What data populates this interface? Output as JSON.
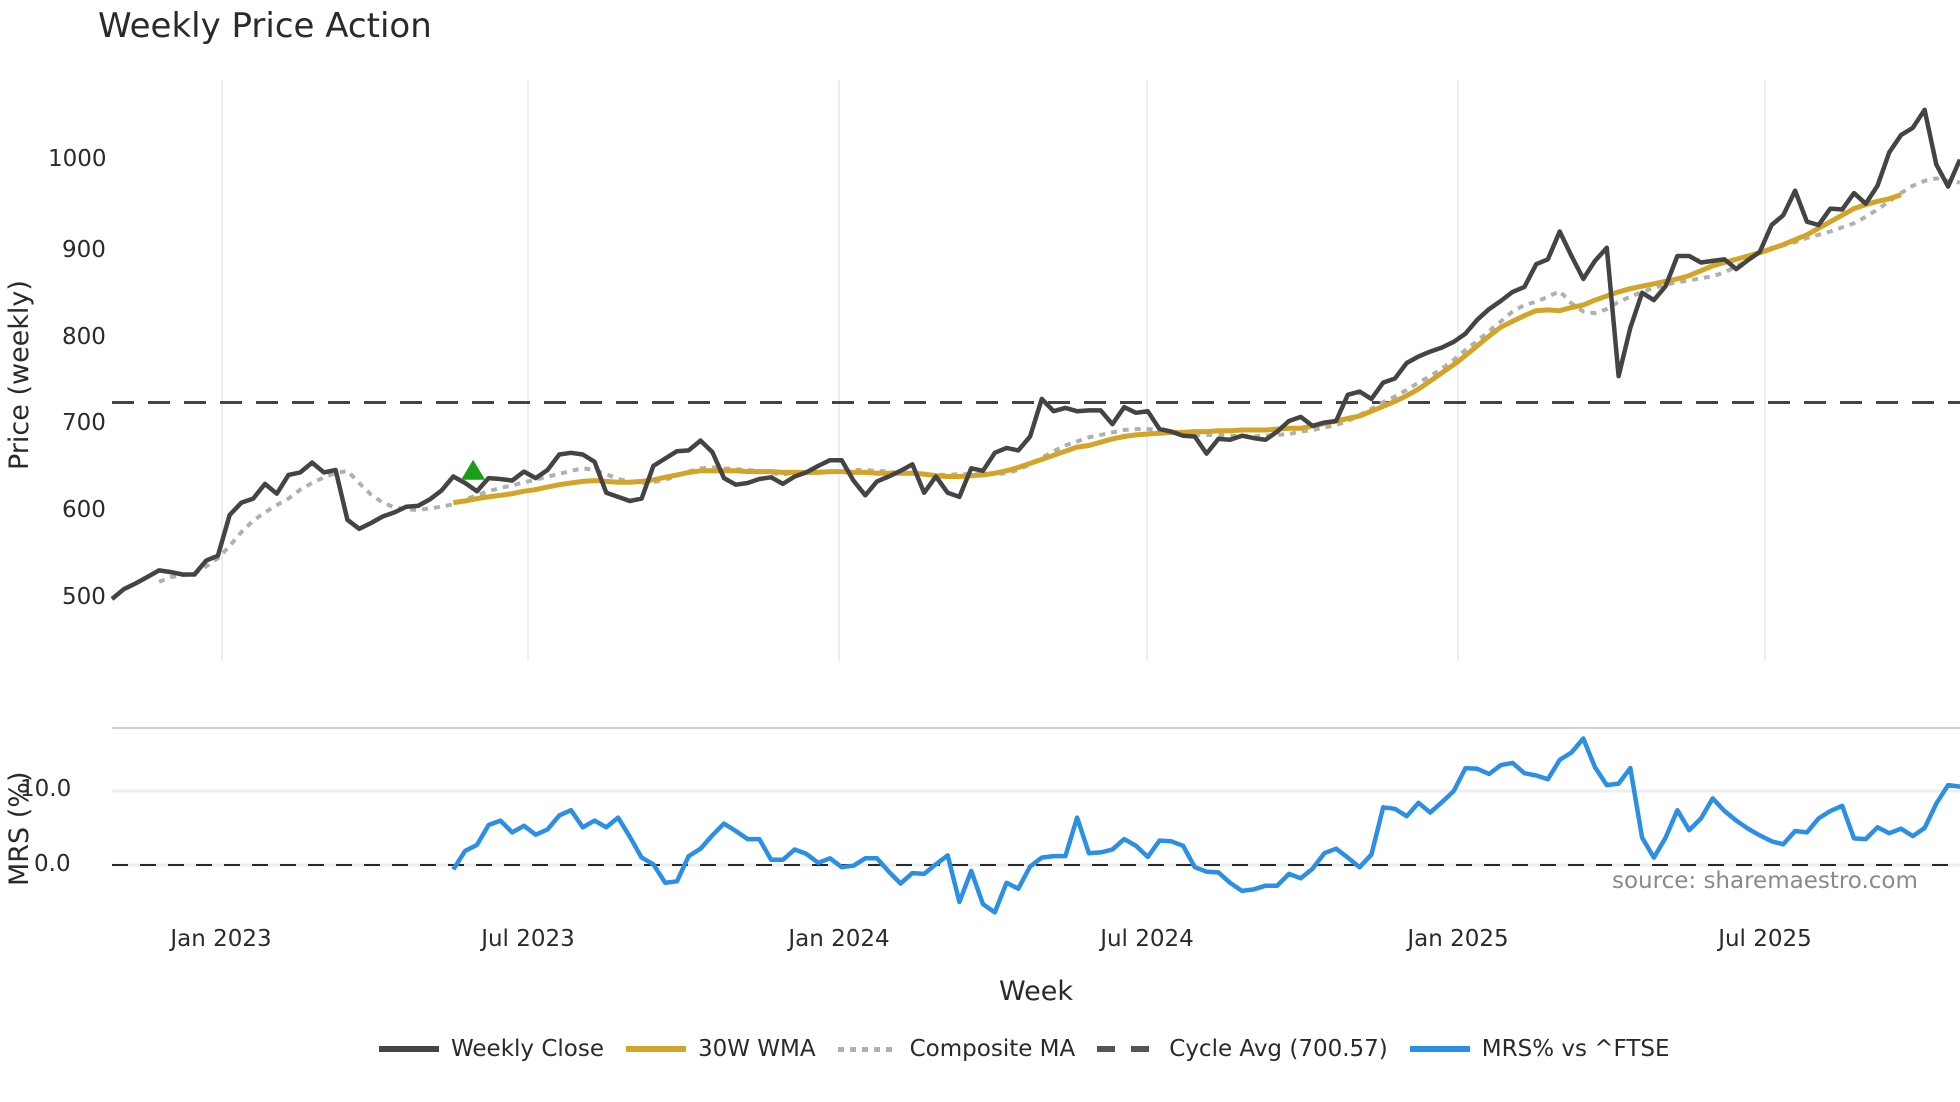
{
  "chart_data": {
    "type": "line",
    "title": "Weekly Price Action",
    "panels": [
      {
        "name": "price",
        "ylabel": "Price (weekly)",
        "yticks": [
          500,
          600,
          700,
          800,
          900,
          1000
        ],
        "ylim": [
          430,
          1080
        ],
        "grid": "vertical"
      },
      {
        "name": "mrs",
        "ylabel": "MRS (%)",
        "yticks": [
          "0.0",
          "10.0"
        ],
        "ytick_values": [
          0,
          10
        ],
        "ylim": [
          -8,
          19
        ],
        "grid": "horizontal"
      }
    ],
    "xlabel": "Week",
    "xticks": [
      "Jan 2023",
      "Jul 2023",
      "Jan 2024",
      "Jul 2024",
      "Jan 2025",
      "Jul 2025"
    ],
    "x_start_week_offset": -9.3,
    "xtick_week_index": [
      9.3,
      35.3,
      61.7,
      87.9,
      114.3,
      140.4
    ],
    "cycle_avg": 700.57,
    "signal_marker": {
      "type": "buy-triangle",
      "week_index": 30,
      "value": 617,
      "color": "#1a9e1a"
    },
    "series": [
      {
        "name": "Weekly Close",
        "color": "#444444",
        "style": "solid",
        "start_index": 0,
        "values": [
          460,
          472,
          479,
          487,
          495,
          493,
          490,
          490,
          507,
          513,
          563,
          578,
          583,
          601,
          589,
          612,
          615,
          627,
          615,
          618,
          557,
          546,
          553,
          561,
          566,
          573,
          574,
          582,
          593,
          610,
          602,
          592,
          608,
          607,
          605,
          616,
          608,
          618,
          637,
          639,
          637,
          628,
          590,
          585,
          580,
          583,
          623,
          632,
          641,
          642,
          654,
          640,
          608,
          600,
          602,
          607,
          609,
          601,
          610,
          615,
          623,
          630,
          630,
          605,
          587,
          604,
          610,
          617,
          625,
          590,
          610,
          590,
          585,
          620,
          617,
          639,
          645,
          642,
          659,
          705,
          690,
          694,
          690,
          691,
          691,
          674,
          695,
          688,
          690,
          668,
          665,
          660,
          659,
          638,
          656,
          655,
          660,
          657,
          655,
          665,
          678,
          683,
          672,
          676,
          678,
          710,
          714,
          705,
          725,
          730,
          749,
          757,
          763,
          768,
          775,
          785,
          802,
          815,
          825,
          836,
          842,
          870,
          876,
          910,
          880,
          852,
          874,
          890,
          733,
          792,
          835,
          826,
          843,
          880,
          880,
          872,
          874,
          876,
          864,
          875,
          885,
          918,
          930,
          960,
          922,
          918,
          938,
          937,
          957,
          944,
          966,
          1007,
          1028,
          1037,
          1059,
          992,
          965,
          998
        ]
      },
      {
        "name": "30W WMA",
        "color": "#d4a428",
        "style": "solid",
        "start_index": 29,
        "values": [
          578,
          580,
          583,
          585,
          587,
          589,
          592,
          594,
          597,
          600,
          602,
          604,
          605,
          604,
          603,
          603,
          604,
          606,
          609,
          612,
          615,
          617,
          617,
          617,
          617,
          616,
          616,
          616,
          615,
          615,
          615,
          615,
          616,
          616,
          615,
          615,
          614,
          614,
          614,
          614,
          613,
          611,
          610,
          610,
          611,
          612,
          614,
          617,
          621,
          626,
          631,
          636,
          641,
          646,
          648,
          652,
          656,
          659,
          661,
          662,
          663,
          664,
          664,
          665,
          665,
          666,
          666,
          667,
          667,
          667,
          668,
          669,
          669,
          672,
          675,
          678,
          681,
          684,
          690,
          696,
          702,
          709,
          717,
          727,
          737,
          747,
          758,
          770,
          782,
          793,
          800,
          807,
          813,
          814,
          813,
          817,
          820,
          826,
          831,
          836,
          840,
          843,
          846,
          849,
          852,
          856,
          862,
          868,
          872,
          876,
          880,
          884,
          889,
          894,
          900,
          906,
          914,
          922,
          930,
          938,
          943,
          947,
          950,
          955
        ]
      },
      {
        "name": "Composite MA",
        "color": "#b0b0b0",
        "style": "dotted",
        "start_index": 4,
        "values": [
          481,
          487,
          489,
          491,
          500,
          510,
          525,
          542,
          556,
          566,
          575,
          583,
          594,
          602,
          609,
          614,
          617,
          602,
          588,
          578,
          572,
          570,
          569,
          571,
          573,
          576,
          582,
          587,
          592,
          596,
          599,
          603,
          606,
          610,
          613,
          617,
          620,
          618,
          613,
          607,
          604,
          602,
          603,
          606,
          611,
          616,
          620,
          621,
          620,
          619,
          618,
          617,
          614,
          613,
          614,
          615,
          616,
          616,
          617,
          618,
          618,
          617,
          616,
          614,
          613,
          613,
          612,
          612,
          613,
          613,
          613,
          613,
          614,
          618,
          625,
          633,
          641,
          648,
          653,
          658,
          661,
          664,
          667,
          668,
          668,
          667,
          664,
          662,
          661,
          661,
          661,
          660,
          660,
          659,
          660,
          661,
          662,
          665,
          667,
          670,
          673,
          678,
          685,
          693,
          701,
          708,
          716,
          725,
          733,
          742,
          753,
          765,
          776,
          788,
          800,
          812,
          820,
          824,
          830,
          837,
          822,
          812,
          810,
          815,
          824,
          830,
          836,
          841,
          845,
          848,
          850,
          853,
          855,
          860,
          867,
          875,
          884,
          890,
          893,
          897,
          902,
          906,
          910,
          915,
          920,
          928,
          937,
          947,
          957,
          966,
          972,
          975,
          972,
          970
        ]
      },
      {
        "name": "Cycle Avg (700.57)",
        "color": "#444444",
        "style": "dashed",
        "constant": 700.57
      },
      {
        "name": "MRS% vs ^FTSE",
        "color": "#2b8fe6",
        "style": "solid",
        "panel": "mrs",
        "start_index": 29,
        "values": [
          -0.6,
          1.9,
          2.7,
          5.4,
          6.0,
          4.4,
          5.3,
          4.1,
          4.8,
          6.7,
          7.4,
          5.1,
          6.0,
          5.1,
          6.4,
          3.8,
          1.0,
          0.1,
          -2.4,
          -2.2,
          1.2,
          2.2,
          4.0,
          5.6,
          4.6,
          3.5,
          3.5,
          0.7,
          0.7,
          2.1,
          1.5,
          0.3,
          0.9,
          -0.3,
          -0.1,
          0.9,
          0.9,
          -0.9,
          -2.5,
          -1.1,
          -1.2,
          0.1,
          1.3,
          -5.0,
          -0.8,
          -5.3,
          -6.4,
          -2.4,
          -3.2,
          -0.2,
          1.0,
          1.2,
          1.2,
          6.4,
          1.6,
          1.7,
          2.1,
          3.5,
          2.6,
          1.1,
          3.3,
          3.2,
          2.6,
          -0.3,
          -0.9,
          -1.0,
          -2.4,
          -3.5,
          -3.3,
          -2.8,
          -2.8,
          -1.2,
          -1.8,
          -0.5,
          1.6,
          2.2,
          1.0,
          -0.3,
          1.4,
          7.8,
          7.6,
          6.6,
          8.4,
          7.1,
          8.5,
          10.0,
          13.1,
          13.0,
          12.3,
          13.5,
          13.8,
          12.4,
          12.1,
          11.6,
          14.2,
          15.2,
          17.1,
          13.2,
          10.8,
          11.0,
          13.1,
          3.7,
          1.0,
          3.7,
          7.4,
          4.7,
          6.3,
          9.0,
          7.3,
          6.0,
          4.9,
          4.0,
          3.2,
          2.8,
          4.6,
          4.4,
          6.3,
          7.3,
          8.0,
          3.6,
          3.5,
          5.1,
          4.3,
          4.9,
          3.9,
          5.0,
          8.3,
          10.8,
          10.6,
          10.0,
          3.4,
          1.0,
          1.6
        ]
      }
    ],
    "legend": [
      "Weekly Close",
      "30W WMA",
      "Composite MA",
      "Cycle Avg (700.57)",
      "MRS% vs ^FTSE"
    ],
    "legend_position": "bottom",
    "annotation": "source: sharemaestro.com"
  },
  "labels": {
    "title": "Weekly Price Action",
    "price_ylabel": "Price (weekly)",
    "mrs_ylabel": "MRS (%)",
    "xlabel": "Week",
    "source": "source: sharemaestro.com",
    "price_ticks": [
      "1000",
      "900",
      "800",
      "700",
      "600",
      "500"
    ],
    "mrs_ticks": [
      "10.0",
      "0.0"
    ],
    "xticks": [
      "Jan 2023",
      "Jul 2023",
      "Jan 2024",
      "Jul 2024",
      "Jan 2025",
      "Jul 2025"
    ],
    "legend": {
      "weekly_close": "Weekly Close",
      "wma": "30W WMA",
      "composite": "Composite MA",
      "cycle": "Cycle Avg (700.57)",
      "mrs": "MRS% vs ^FTSE"
    }
  },
  "colors": {
    "close": "#444444",
    "wma": "#d4a428",
    "composite": "#b0b0b0",
    "cycle": "#444444",
    "mrs": "#2b8fe6",
    "signal": "#1a9e1a",
    "grid": "#eceef2"
  }
}
